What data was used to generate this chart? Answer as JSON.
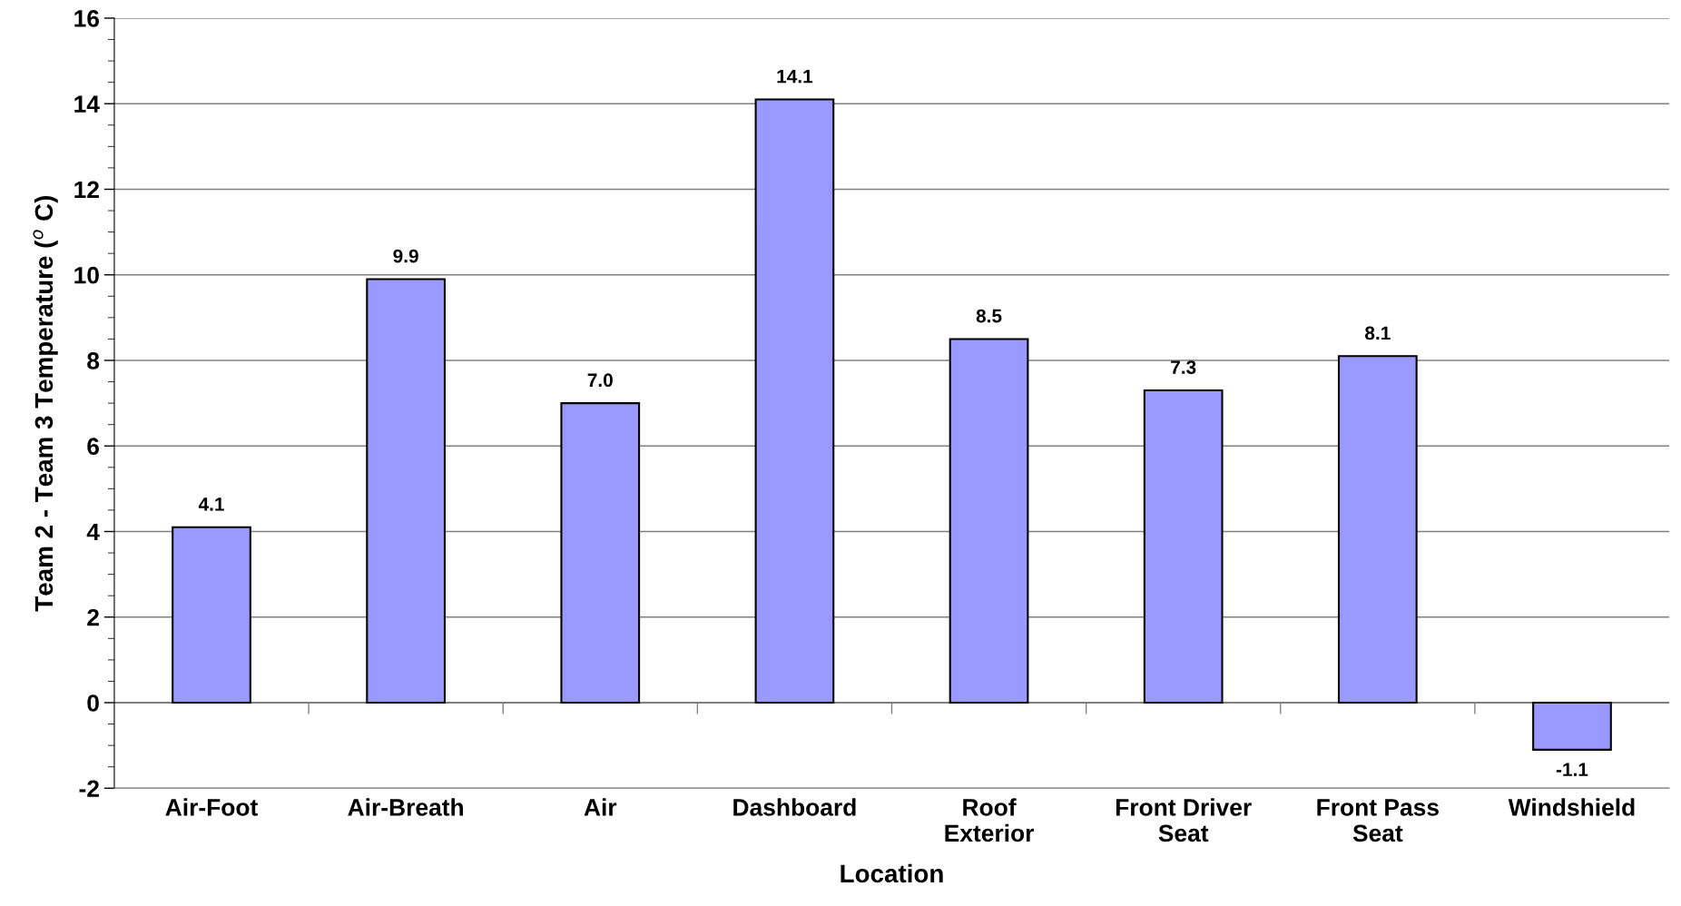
{
  "chart_data": {
    "type": "bar",
    "xlabel": "Location",
    "ylabel": "Team 2 - Team 3 Temperature ($^{o}$ C)",
    "categories": [
      "Air-Foot",
      "Air-Breath",
      "Air",
      "Dashboard",
      "Roof\nExterior",
      "Front Driver\nSeat",
      "Front Pass\nSeat",
      "Windshield"
    ],
    "values": [
      4.1,
      9.9,
      7.0,
      14.1,
      8.5,
      7.3,
      8.1,
      -1.1
    ],
    "color": "#9999ff",
    "ylim": [
      -2,
      16
    ],
    "yticks": [
      -2,
      0,
      2,
      4,
      6,
      8,
      10,
      12,
      14,
      16
    ],
    "value_labels": [
      "4.1",
      "9.9",
      "7.0",
      "14.1",
      "8.5",
      "7.3",
      "8.1",
      "-1.1"
    ],
    "grid": "y"
  }
}
